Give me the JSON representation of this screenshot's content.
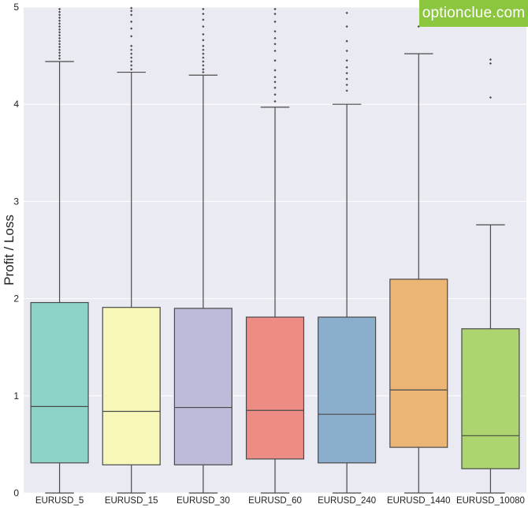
{
  "watermark": "optionclue.com",
  "chart_data": {
    "type": "boxplot",
    "title": "",
    "xlabel": "",
    "ylabel": "Profit / Loss",
    "ylim": [
      0,
      5
    ],
    "yticks": [
      "0",
      "1",
      "2",
      "3",
      "4",
      "5"
    ],
    "grid": true,
    "categories": [
      "EURUSD_5",
      "EURUSD_15",
      "EURUSD_30",
      "EURUSD_60",
      "EURUSD_240",
      "EURUSD_1440",
      "EURUSD_10080"
    ],
    "boxes": [
      {
        "name": "EURUSD_5",
        "color": "#8dd3c7",
        "whisker_low": 0.0,
        "q1": 0.31,
        "median": 0.89,
        "q3": 1.96,
        "whisker_high": 4.44,
        "outliers": [
          4.47,
          4.5,
          4.53,
          4.56,
          4.59,
          4.62,
          4.65,
          4.68,
          4.71,
          4.74,
          4.77,
          4.8,
          4.83,
          4.86,
          4.89,
          4.92,
          4.95,
          4.98
        ]
      },
      {
        "name": "EURUSD_15",
        "color": "#f7f7b9",
        "whisker_low": 0.0,
        "q1": 0.29,
        "median": 0.84,
        "q3": 1.91,
        "whisker_high": 4.33,
        "outliers": [
          4.36,
          4.4,
          4.44,
          4.48,
          4.52,
          4.56,
          4.6,
          4.7,
          4.78,
          4.85,
          4.92,
          4.96,
          4.99
        ]
      },
      {
        "name": "EURUSD_30",
        "color": "#bebada",
        "whisker_low": 0.0,
        "q1": 0.29,
        "median": 0.88,
        "q3": 1.9,
        "whisker_high": 4.3,
        "outliers": [
          4.33,
          4.36,
          4.4,
          4.44,
          4.48,
          4.52,
          4.56,
          4.6,
          4.66,
          4.72,
          4.8,
          4.87,
          4.93,
          4.98
        ]
      },
      {
        "name": "EURUSD_60",
        "color": "#ed8c84",
        "whisker_low": 0.0,
        "q1": 0.35,
        "median": 0.85,
        "q3": 1.81,
        "whisker_high": 3.97,
        "outliers": [
          4.03,
          4.1,
          4.17,
          4.23,
          4.28,
          4.35,
          4.45,
          4.55,
          4.62,
          4.68,
          4.75,
          4.85,
          4.93,
          4.98
        ]
      },
      {
        "name": "EURUSD_240",
        "color": "#8aaecb",
        "whisker_low": 0.0,
        "q1": 0.31,
        "median": 0.81,
        "q3": 1.81,
        "whisker_high": 4.0,
        "outliers": [
          4.14,
          4.2,
          4.26,
          4.32,
          4.38,
          4.45,
          4.55,
          4.65,
          4.8,
          4.94
        ]
      },
      {
        "name": "EURUSD_1440",
        "color": "#ebb575",
        "whisker_low": 0.0,
        "q1": 0.47,
        "median": 1.06,
        "q3": 2.2,
        "whisker_high": 4.52,
        "outliers": [
          4.8
        ]
      },
      {
        "name": "EURUSD_10080",
        "color": "#acd46f",
        "whisker_low": 0.0,
        "q1": 0.25,
        "median": 0.59,
        "q3": 1.69,
        "whisker_high": 2.76,
        "outliers": [
          4.07,
          4.42,
          4.46
        ]
      }
    ]
  }
}
